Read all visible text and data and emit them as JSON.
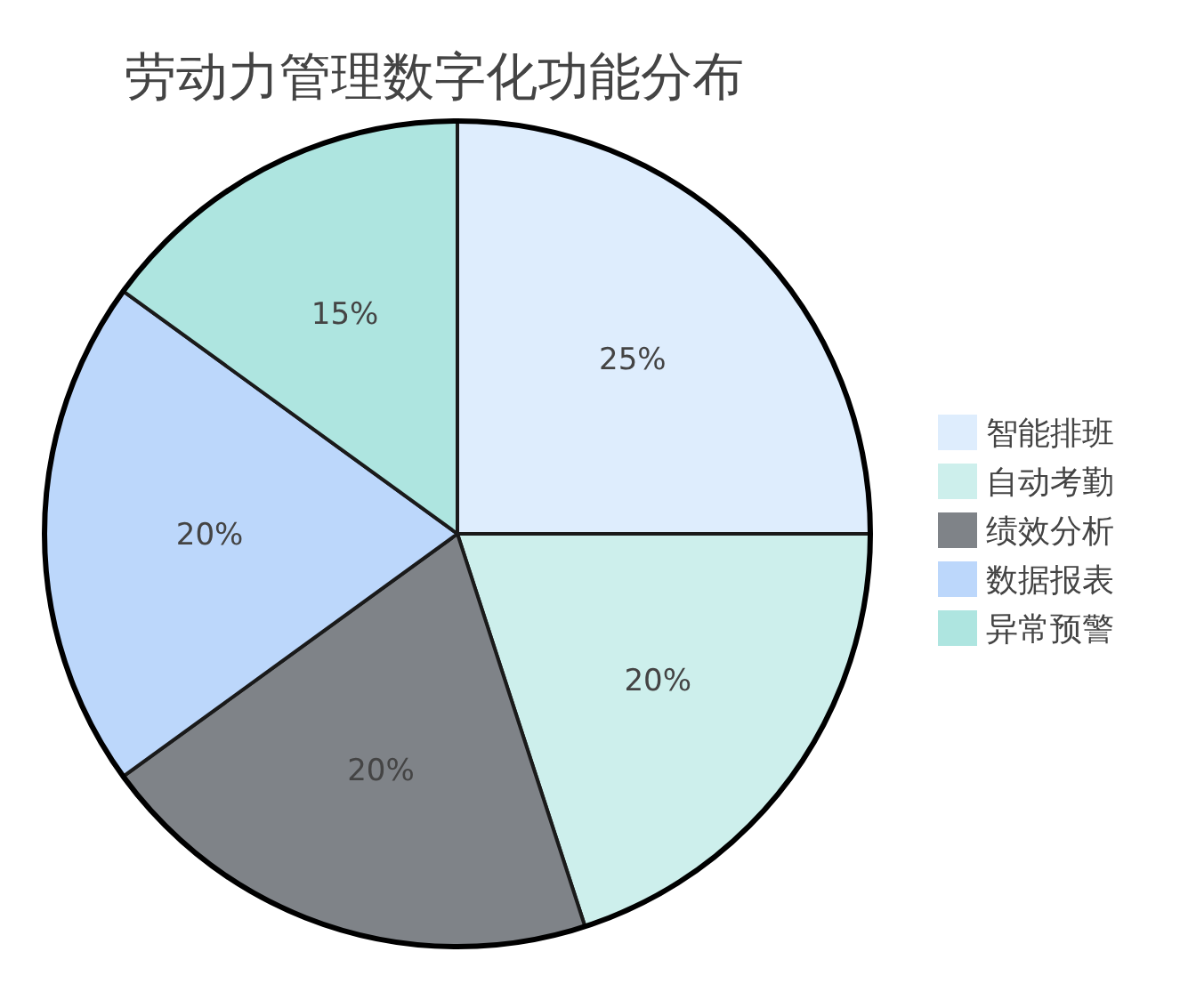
{
  "chart_data": {
    "type": "pie",
    "title": "劳动力管理数字化功能分布",
    "categories": [
      "智能排班",
      "自动考勤",
      "绩效分析",
      "数据报表",
      "异常预警"
    ],
    "values": [
      25,
      20,
      20,
      20,
      15
    ],
    "colors": [
      "#deedfd",
      "#cdefec",
      "#7f8388",
      "#bcd7fb",
      "#aee5e0"
    ],
    "value_labels": [
      "25%",
      "20%",
      "20%",
      "20%",
      "15%"
    ],
    "legend": "right"
  }
}
